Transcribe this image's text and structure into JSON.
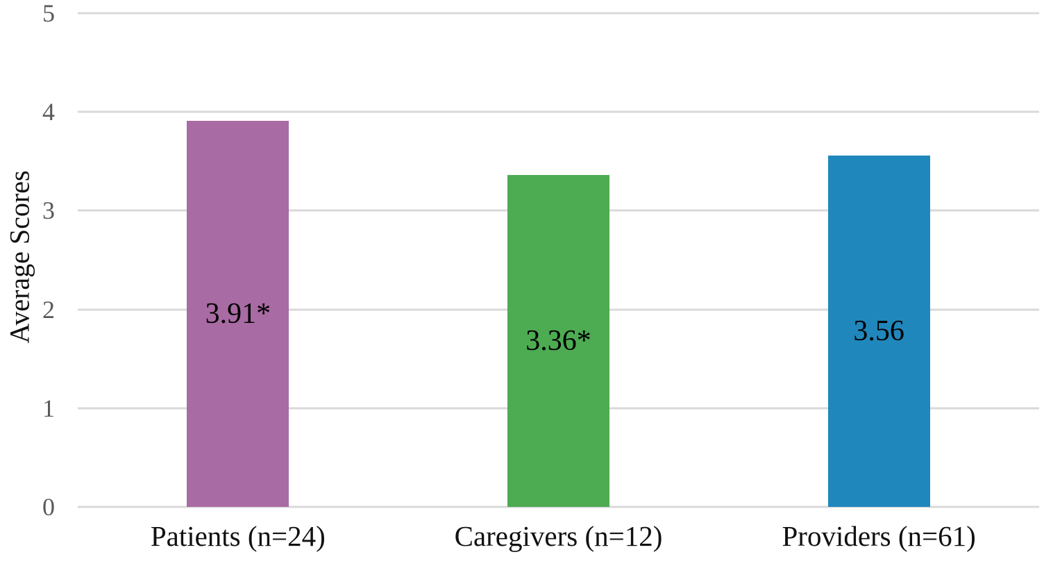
{
  "chart_data": {
    "type": "bar",
    "categories": [
      "Patients (n=24)",
      "Caregivers (n=12)",
      "Providers (n=61)"
    ],
    "values": [
      3.91,
      3.36,
      3.56
    ],
    "bar_labels": [
      "3.91*",
      "3.36*",
      "3.56"
    ],
    "colors": [
      "#A96BA4",
      "#4DAB52",
      "#2087BC"
    ],
    "title": "",
    "xlabel": "",
    "ylabel": "Average Scores",
    "ylim": [
      0,
      5
    ],
    "yticks": [
      0,
      1,
      2,
      3,
      4,
      5
    ],
    "grid": "horizontal",
    "grid_color": "#D9D9D9",
    "tick_color": "#595959",
    "legend_position": "none"
  }
}
